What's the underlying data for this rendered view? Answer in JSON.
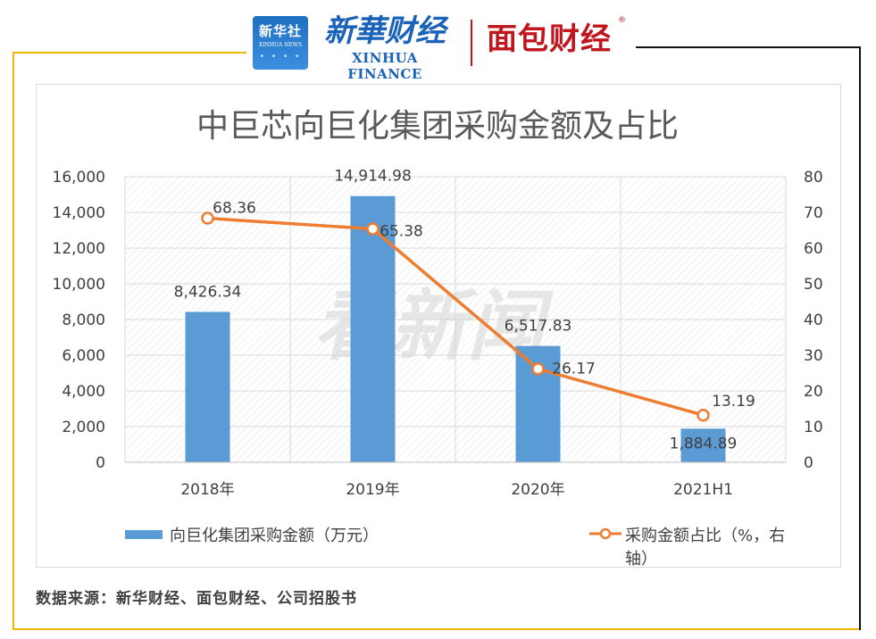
{
  "logos": {
    "xinhua_cn": "新华社",
    "xinhua_en": "XINHUA NEWS",
    "finance_cn": "新華财经",
    "finance_en": "XINHUA FINANCE",
    "mianbao": "面包财经",
    "registered": "®",
    "watermark": "看新闻"
  },
  "source": "数据来源：新华财经、面包财经、公司招股书",
  "colors": {
    "bar": "#5b9bd5",
    "line": "#ed7d31",
    "frame_gold": "#f2b705",
    "brand_red": "#c0161e",
    "brand_blue": "#1b63b8"
  },
  "chart_data": {
    "type": "bar+line",
    "title": "中巨芯向巨化集团采购金额及占比",
    "categories": [
      "2018年",
      "2019年",
      "2020年",
      "2021H1"
    ],
    "series": [
      {
        "name": "向巨化集团采购金额（万元）",
        "type": "bar",
        "axis": "left",
        "values": [
          8426.34,
          14914.98,
          6517.83,
          1884.89
        ],
        "labels": [
          "8,426.34",
          "14,914.98",
          "6,517.83",
          "1,884.89"
        ]
      },
      {
        "name": "采购金额占比（%，右轴）",
        "type": "line",
        "axis": "right",
        "values": [
          68.36,
          65.38,
          26.17,
          13.19
        ],
        "labels": [
          "68.36",
          "65.38",
          "26.17",
          "13.19"
        ]
      }
    ],
    "left_axis": {
      "ylim": [
        0,
        16000
      ],
      "ticks": [
        "0",
        "2,000",
        "4,000",
        "6,000",
        "8,000",
        "10,000",
        "12,000",
        "14,000",
        "16,000"
      ]
    },
    "right_axis": {
      "ylim": [
        0,
        80
      ],
      "ticks": [
        "0",
        "10",
        "20",
        "30",
        "40",
        "50",
        "60",
        "70",
        "80"
      ]
    },
    "grid": true,
    "legend_position": "bottom"
  }
}
